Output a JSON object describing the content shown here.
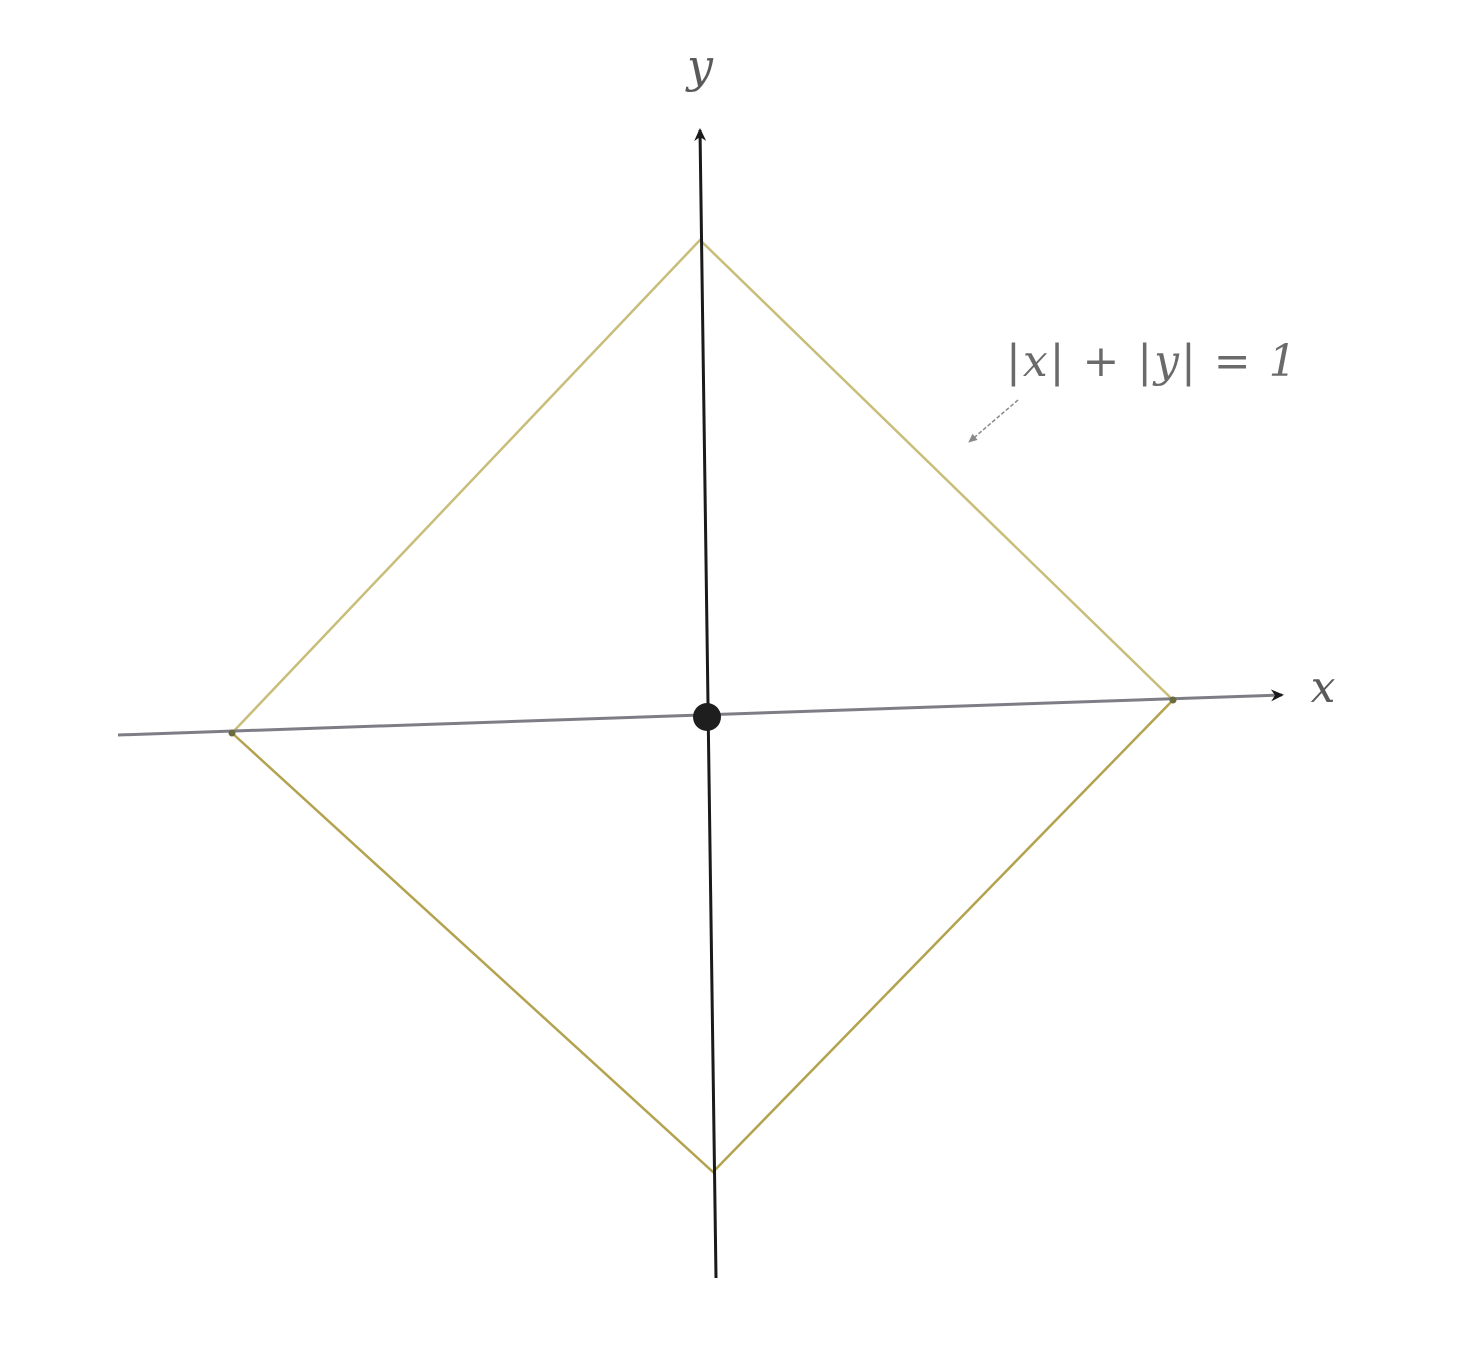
{
  "diagram": {
    "axis_labels": {
      "x": "x",
      "y": "y"
    },
    "curve_label": "|x| + |y| = 1",
    "origin": [
      0,
      0
    ],
    "square_vertices": [
      [
        1,
        0
      ],
      [
        0,
        1
      ],
      [
        -1,
        0
      ],
      [
        0,
        -1
      ]
    ],
    "colors": {
      "square": "#c9bd7a",
      "square_lower": "#b3a24e",
      "y_axis": "#1a1a1a",
      "x_axis": "#7d7d85",
      "origin_dot": "#1e1e1e",
      "annotation": "#6a6a6a"
    }
  }
}
